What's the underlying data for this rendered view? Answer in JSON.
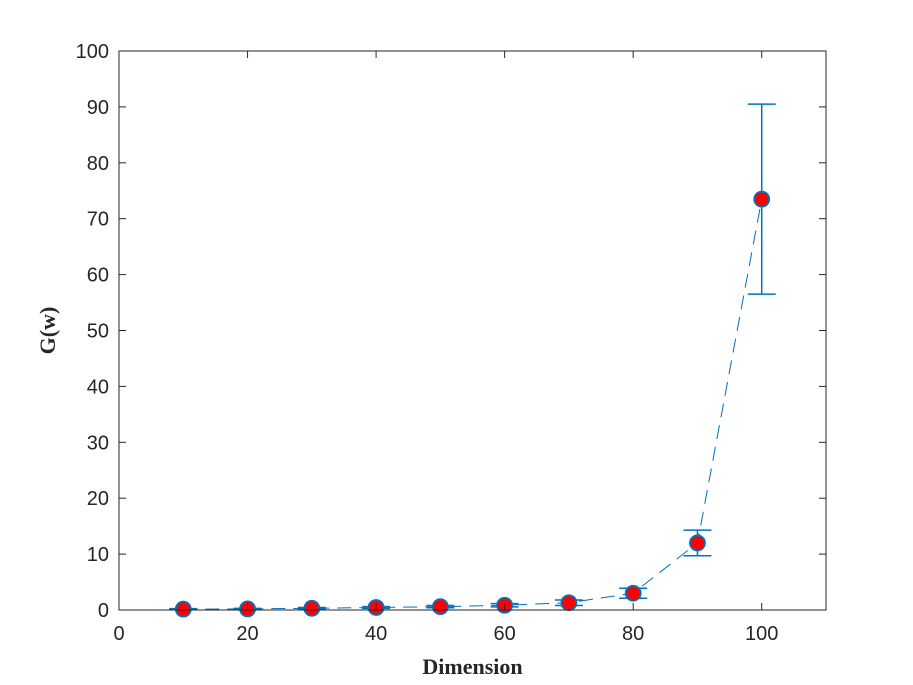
{
  "chart_data": {
    "type": "line",
    "title": "",
    "xlabel": "Dimension",
    "ylabel": "G(w)",
    "xlim": [
      0,
      110
    ],
    "ylim": [
      0,
      100
    ],
    "xticks": [
      0,
      20,
      40,
      60,
      80,
      100
    ],
    "yticks": [
      0,
      10,
      20,
      30,
      40,
      50,
      60,
      70,
      80,
      90,
      100
    ],
    "grid": false,
    "series": [
      {
        "x": [
          10,
          20,
          30,
          40,
          50,
          60,
          70,
          80,
          90,
          100
        ],
        "y": [
          0.15,
          0.2,
          0.3,
          0.45,
          0.6,
          0.85,
          1.3,
          3.0,
          12.0,
          73.5
        ],
        "err_low": [
          0.1,
          0.1,
          0.15,
          0.15,
          0.2,
          0.3,
          0.5,
          0.9,
          2.3,
          17.0
        ],
        "err_high": [
          0.1,
          0.1,
          0.15,
          0.15,
          0.2,
          0.3,
          0.5,
          0.9,
          2.3,
          17.0
        ],
        "line_style": "dashed",
        "line_color": "#0072BD",
        "marker": "circle",
        "marker_face_color": "#FF0000",
        "marker_edge_color": "#0072BD"
      }
    ]
  }
}
